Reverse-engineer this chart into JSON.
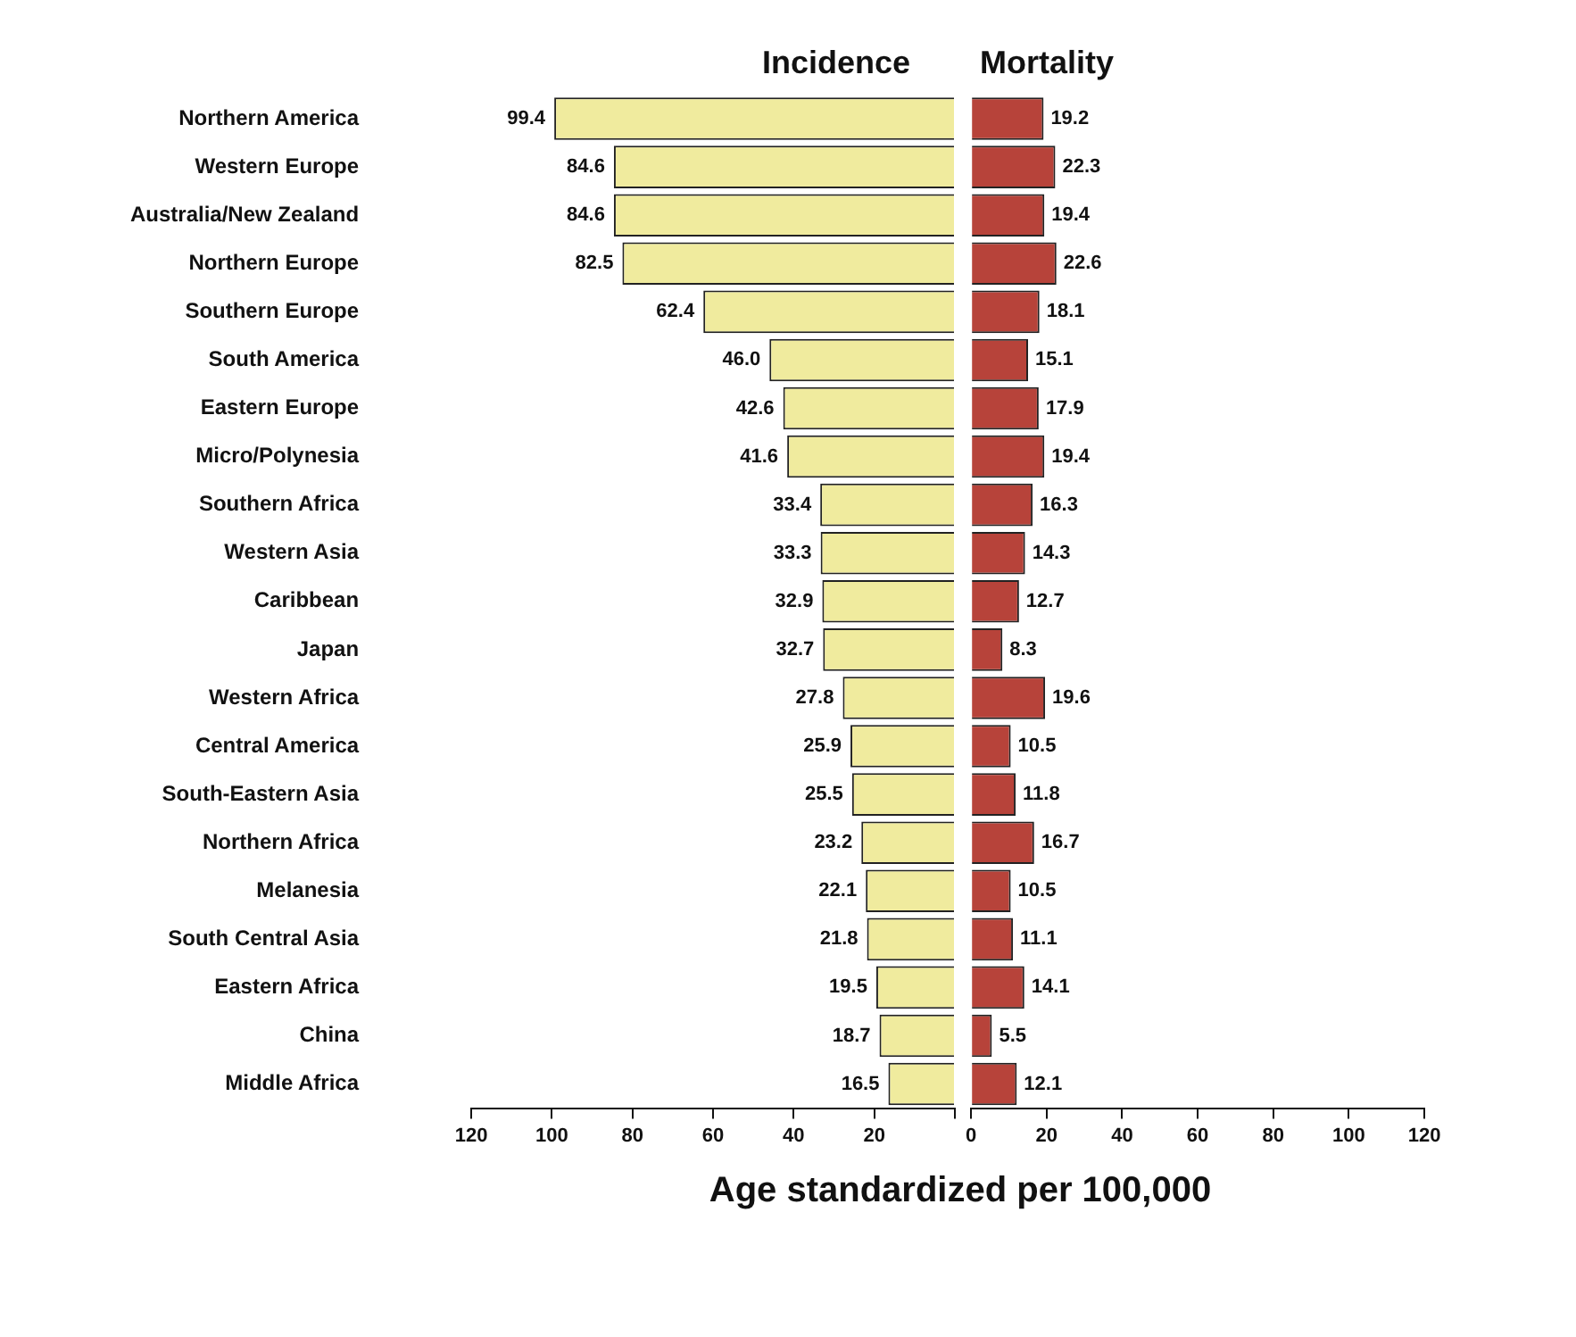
{
  "chart_data": [
    {
      "type": "bar",
      "orientation": "horizontal",
      "xlabel": "Age standardized per 100,000",
      "categories": [
        "Northern America",
        "Western Europe",
        "Australia/New Zealand",
        "Northern Europe",
        "Southern Europe",
        "South America",
        "Eastern Europe",
        "Micro/Polynesia",
        "Southern Africa",
        "Western Asia",
        "Caribbean",
        "Japan",
        "Western Africa",
        "Central America",
        "South-Eastern Asia",
        "Northern Africa",
        "Melanesia",
        "South Central Asia",
        "Eastern Africa",
        "China",
        "Middle Africa"
      ],
      "series": [
        {
          "name": "Incidence",
          "color": "#f0eb9e",
          "values": [
            99.4,
            84.6,
            84.6,
            82.5,
            62.4,
            46.0,
            42.6,
            41.6,
            33.4,
            33.3,
            32.9,
            32.7,
            27.8,
            25.9,
            25.5,
            23.2,
            22.1,
            21.8,
            19.5,
            18.7,
            16.5
          ],
          "value_labels": [
            "99.4",
            "84.6",
            "84.6",
            "82.5",
            "62.4",
            "46.0",
            "42.6",
            "41.6",
            "33.4",
            "33.3",
            "32.9",
            "32.7",
            "27.8",
            "25.9",
            "25.5",
            "23.2",
            "22.1",
            "21.8",
            "19.5",
            "18.7",
            "16.5"
          ]
        }
      ],
      "xlim": [
        120,
        0
      ],
      "xticks": [
        120,
        100,
        80,
        60,
        40,
        20,
        {
          "value": 0,
          "label": null
        }
      ],
      "grid": false,
      "legend": false
    },
    {
      "type": "bar",
      "orientation": "horizontal",
      "categories": [
        null,
        null,
        null,
        null,
        null,
        null,
        null,
        null,
        null,
        null,
        null,
        null,
        null,
        null,
        null,
        null,
        null,
        null,
        null,
        null,
        null
      ],
      "series": [
        {
          "name": "Mortality",
          "color": "#b7433a",
          "values": [
            19.2,
            22.3,
            19.4,
            22.6,
            18.1,
            15.1,
            17.9,
            19.4,
            16.3,
            14.3,
            12.7,
            8.3,
            19.6,
            10.5,
            11.8,
            16.7,
            10.5,
            11.1,
            14.1,
            5.5,
            12.1
          ]
        }
      ],
      "xlim": [
        0,
        120
      ],
      "xticks": [
        0,
        20,
        40,
        60,
        80,
        100,
        120
      ],
      "tick_labels": "x",
      "data_labels": true,
      "grid": false,
      "legend": false
    }
  ]
}
